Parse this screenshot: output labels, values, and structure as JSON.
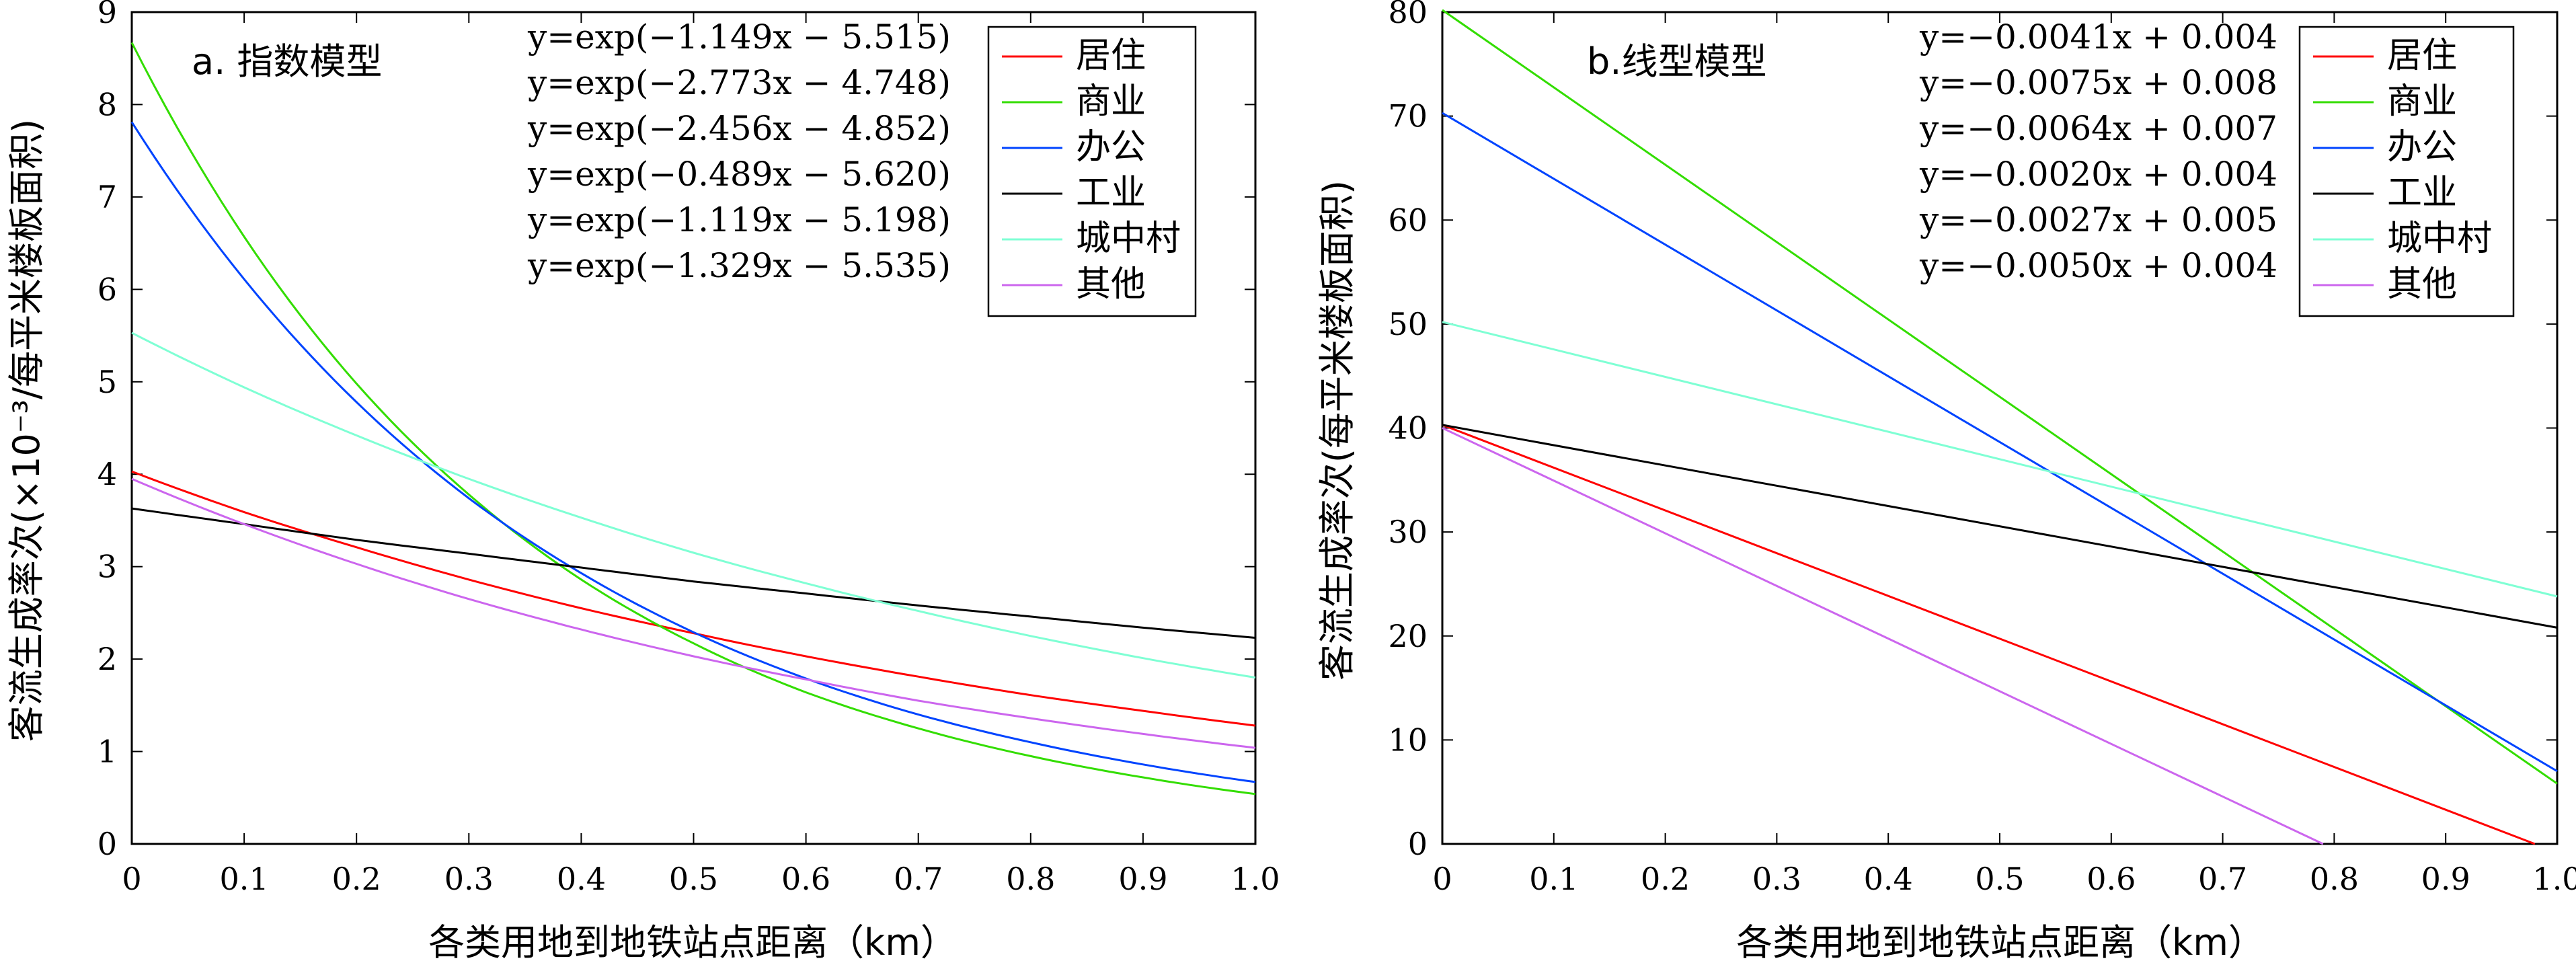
{
  "chart_data": [
    {
      "type": "line",
      "title": "a. 指数模型",
      "xlabel": "各类用地到地铁站点距离（km）",
      "ylabel": "客流生成率次(×10⁻³/每平米楼板面积)",
      "xlim": [
        0,
        1.0
      ],
      "ylim": [
        0,
        9
      ],
      "xticks": [
        "0",
        "0.1",
        "0.2",
        "0.3",
        "0.4",
        "0.5",
        "0.6",
        "0.7",
        "0.8",
        "0.9",
        "1.0"
      ],
      "yticks": [
        "0",
        "1",
        "2",
        "3",
        "4",
        "5",
        "6",
        "7",
        "8",
        "9"
      ],
      "grid": false,
      "legend_position": "top-right",
      "equations": [
        "y=exp(−1.149x − 5.515)",
        "y=exp(−2.773x − 4.748)",
        "y=exp(−2.456x − 4.852)",
        "y=exp(−0.489x − 5.620)",
        "y=exp(−1.119x − 5.198)",
        "y=exp(−1.329x − 5.535)"
      ],
      "x": [
        0,
        0.1,
        0.2,
        0.3,
        0.4,
        0.5,
        0.6,
        0.7,
        0.8,
        0.9,
        1.0
      ],
      "series": [
        {
          "name": "居住",
          "color": "#ff0000",
          "values": [
            4.03,
            3.59,
            3.21,
            2.86,
            2.55,
            2.28,
            2.03,
            1.81,
            1.61,
            1.44,
            1.28
          ]
        },
        {
          "name": "商业",
          "color": "#33dd00",
          "values": [
            8.67,
            6.57,
            4.98,
            3.78,
            2.86,
            2.17,
            1.64,
            1.25,
            0.95,
            0.72,
            0.54
          ]
        },
        {
          "name": "办公",
          "color": "#0044ff",
          "values": [
            7.81,
            6.11,
            4.78,
            3.74,
            2.93,
            2.29,
            1.79,
            1.4,
            1.1,
            0.86,
            0.67
          ]
        },
        {
          "name": "工业",
          "color": "#000000",
          "values": [
            3.63,
            3.46,
            3.29,
            3.14,
            2.99,
            2.84,
            2.71,
            2.58,
            2.46,
            2.34,
            2.23
          ]
        },
        {
          "name": "城中村",
          "color": "#7fffd4",
          "values": [
            5.53,
            4.94,
            4.42,
            3.95,
            3.53,
            3.15,
            2.82,
            2.52,
            2.25,
            2.01,
            1.8
          ]
        },
        {
          "name": "其他",
          "color": "#cc66ee",
          "values": [
            3.95,
            3.46,
            3.03,
            2.65,
            2.32,
            2.03,
            1.78,
            1.55,
            1.36,
            1.19,
            1.04
          ]
        }
      ]
    },
    {
      "type": "line",
      "title": "b.线型模型",
      "xlabel": "各类用地到地铁站点距离（km）",
      "ylabel": "客流生成率次(每平米楼板面积)",
      "xlim": [
        0,
        1.0
      ],
      "ylim": [
        0,
        80
      ],
      "xticks": [
        "0",
        "0.1",
        "0.2",
        "0.3",
        "0.4",
        "0.5",
        "0.6",
        "0.7",
        "0.8",
        "0.9",
        "1.0"
      ],
      "yticks": [
        "0",
        "10",
        "20",
        "30",
        "40",
        "50",
        "60",
        "70",
        "80"
      ],
      "grid": false,
      "legend_position": "top-right",
      "equations": [
        "y=−0.0041x + 0.004",
        "y=−0.0075x + 0.008",
        "y=−0.0064x + 0.007",
        "y=−0.0020x + 0.004",
        "y=−0.0027x + 0.005",
        "y=−0.0050x + 0.004"
      ],
      "series": [
        {
          "name": "居住",
          "color": "#ff0000",
          "x": [
            0,
            0.98
          ],
          "values": [
            40.3,
            0
          ]
        },
        {
          "name": "商业",
          "color": "#33dd00",
          "x": [
            0,
            1.0
          ],
          "values": [
            80.2,
            5.8
          ]
        },
        {
          "name": "办公",
          "color": "#0044ff",
          "x": [
            0,
            1.0
          ],
          "values": [
            70.3,
            7.0
          ]
        },
        {
          "name": "工业",
          "color": "#000000",
          "x": [
            0,
            1.0
          ],
          "values": [
            40.3,
            20.8
          ]
        },
        {
          "name": "城中村",
          "color": "#7fffd4",
          "x": [
            0,
            1.0
          ],
          "values": [
            50.2,
            23.8
          ]
        },
        {
          "name": "其他",
          "color": "#cc66ee",
          "x": [
            0,
            0.79
          ],
          "values": [
            40.0,
            0
          ]
        }
      ]
    }
  ]
}
